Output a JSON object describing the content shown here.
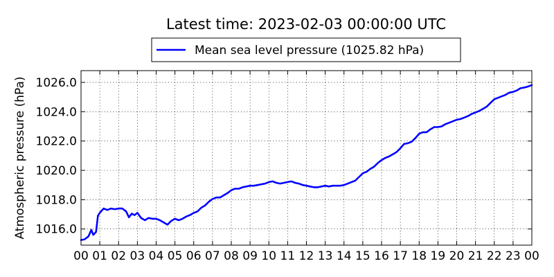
{
  "chart_data": {
    "type": "line",
    "title": "Latest time: 2023-02-03 00:00:00 UTC",
    "xlabel": "",
    "ylabel": "Atmospheric pressure (hPa)",
    "x_ticks": [
      "00",
      "01",
      "02",
      "03",
      "04",
      "05",
      "06",
      "07",
      "08",
      "09",
      "10",
      "11",
      "12",
      "13",
      "14",
      "15",
      "16",
      "17",
      "18",
      "19",
      "20",
      "21",
      "22",
      "23",
      "00"
    ],
    "y_ticks": [
      "1016.0",
      "1018.0",
      "1020.0",
      "1022.0",
      "1024.0",
      "1026.0"
    ],
    "xlim": [
      0,
      24
    ],
    "ylim": [
      1014.9,
      1026.8
    ],
    "grid": true,
    "legend_position": "top-center",
    "series": [
      {
        "name": "Mean sea level pressure (1025.82 hPa)",
        "color": "#0000ff",
        "x": [
          0,
          0.2,
          0.4,
          0.55,
          0.65,
          0.8,
          0.9,
          1.0,
          1.2,
          1.4,
          1.6,
          1.8,
          2.0,
          2.2,
          2.4,
          2.55,
          2.7,
          2.85,
          3.0,
          3.2,
          3.4,
          3.6,
          3.8,
          4.0,
          4.2,
          4.4,
          4.6,
          4.8,
          5.0,
          5.2,
          5.4,
          5.6,
          5.8,
          6.0,
          6.2,
          6.4,
          6.6,
          6.8,
          7.0,
          7.2,
          7.4,
          7.6,
          7.8,
          8.0,
          8.2,
          8.4,
          8.6,
          8.8,
          9.0,
          9.2,
          9.4,
          9.6,
          9.8,
          10.0,
          10.2,
          10.4,
          10.6,
          10.8,
          11.0,
          11.2,
          11.4,
          11.6,
          11.8,
          12.0,
          12.2,
          12.4,
          12.6,
          12.8,
          13.0,
          13.2,
          13.4,
          13.6,
          13.8,
          14.0,
          14.2,
          14.4,
          14.6,
          14.8,
          15.0,
          15.2,
          15.4,
          15.6,
          15.8,
          16.0,
          16.2,
          16.4,
          16.6,
          16.8,
          17.0,
          17.2,
          17.4,
          17.6,
          17.8,
          18.0,
          18.2,
          18.4,
          18.6,
          18.8,
          19.0,
          19.2,
          19.4,
          19.6,
          19.8,
          20.0,
          20.2,
          20.4,
          20.6,
          20.8,
          21.0,
          21.2,
          21.4,
          21.6,
          21.8,
          22.0,
          22.2,
          22.4,
          22.6,
          22.8,
          23.0,
          23.2,
          23.4,
          23.6,
          23.8,
          24.0
        ],
        "values": [
          1015.25,
          1015.3,
          1015.5,
          1015.95,
          1015.6,
          1015.8,
          1016.9,
          1017.1,
          1017.4,
          1017.3,
          1017.4,
          1017.35,
          1017.4,
          1017.4,
          1017.2,
          1016.8,
          1017.05,
          1016.95,
          1017.1,
          1016.75,
          1016.6,
          1016.75,
          1016.7,
          1016.7,
          1016.6,
          1016.45,
          1016.3,
          1016.55,
          1016.7,
          1016.6,
          1016.7,
          1016.85,
          1016.95,
          1017.1,
          1017.2,
          1017.45,
          1017.6,
          1017.85,
          1018.05,
          1018.15,
          1018.15,
          1018.3,
          1018.45,
          1018.65,
          1018.75,
          1018.75,
          1018.85,
          1018.9,
          1018.95,
          1018.95,
          1019.0,
          1019.05,
          1019.1,
          1019.2,
          1019.25,
          1019.15,
          1019.1,
          1019.15,
          1019.2,
          1019.25,
          1019.15,
          1019.1,
          1019.0,
          1018.95,
          1018.9,
          1018.85,
          1018.85,
          1018.9,
          1018.95,
          1018.9,
          1018.95,
          1018.95,
          1018.95,
          1019.0,
          1019.1,
          1019.2,
          1019.3,
          1019.55,
          1019.8,
          1019.9,
          1020.1,
          1020.25,
          1020.5,
          1020.7,
          1020.85,
          1020.95,
          1021.1,
          1021.25,
          1021.5,
          1021.8,
          1021.85,
          1021.95,
          1022.2,
          1022.5,
          1022.6,
          1022.6,
          1022.8,
          1022.95,
          1022.95,
          1023.0,
          1023.15,
          1023.25,
          1023.35,
          1023.45,
          1023.5,
          1023.6,
          1023.7,
          1023.85,
          1023.95,
          1024.05,
          1024.2,
          1024.35,
          1024.6,
          1024.85,
          1024.95,
          1025.05,
          1025.15,
          1025.3,
          1025.35,
          1025.45,
          1025.6,
          1025.65,
          1025.72,
          1025.82
        ]
      }
    ]
  }
}
